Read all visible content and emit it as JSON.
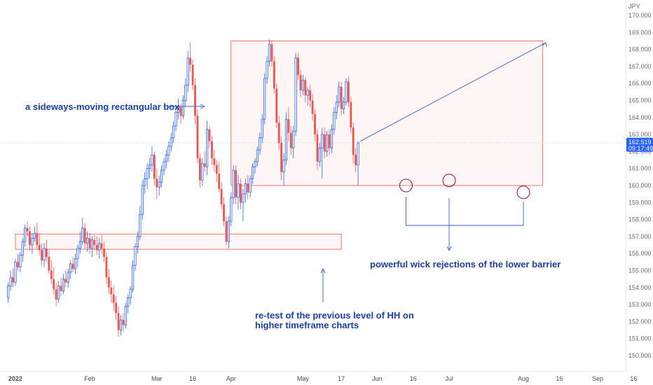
{
  "chart_data": {
    "type": "candlestick",
    "currency": "JPY",
    "y_ticks": [
      "170.000",
      "169.000",
      "168.000",
      "167.000",
      "166.000",
      "165.000",
      "164.000",
      "163.000",
      "162.000",
      "161.000",
      "160.000",
      "159.000",
      "158.000",
      "157.000",
      "156.000",
      "155.000",
      "154.000",
      "153.000",
      "152.000",
      "151.000",
      "150.000"
    ],
    "ylim": [
      149.5,
      170.5
    ],
    "x_ticks": [
      {
        "label": "2022",
        "day": 0
      },
      {
        "label": "Feb",
        "day": 31
      },
      {
        "label": "Mar",
        "day": 59
      },
      {
        "label": "16",
        "day": 74
      },
      {
        "label": "Apr",
        "day": 90
      },
      {
        "label": "May",
        "day": 120
      },
      {
        "label": "17",
        "day": 136
      },
      {
        "label": "Jun",
        "day": 151
      },
      {
        "label": "16",
        "day": 166
      },
      {
        "label": "Jul",
        "day": 181
      },
      {
        "label": "Aug",
        "day": 212
      },
      {
        "label": "16",
        "day": 227
      },
      {
        "label": "Sep",
        "day": 243
      },
      {
        "label": "16",
        "day": 258
      }
    ],
    "xlim": [
      -3,
      262
    ],
    "current_price": "162.519",
    "countdown": "09:17:49",
    "up_color": "#2962ff",
    "down_color": "#ef5350",
    "zones": [
      {
        "name": "range-box",
        "day_start": 90,
        "day_end": 220,
        "price_low": 160.0,
        "price_high": 168.5
      },
      {
        "name": "previous-hh-zone",
        "day_start": 0,
        "day_end": 136,
        "price_low": 156.25,
        "price_high": 157.15
      }
    ],
    "annotations": {
      "box_label": "a sideways-moving rectangular box",
      "retest_line1": "re-test of the previous level of HH on",
      "retest_line2": "higher timeframe charts",
      "rejection_label": "powerful wick rejections of the lower barrier"
    },
    "candles": [
      {
        "day": -3,
        "o": 153.4,
        "h": 154.3,
        "l": 153.1,
        "c": 154.1
      },
      {
        "day": -2,
        "o": 154.1,
        "h": 155.0,
        "l": 153.8,
        "c": 154.6
      },
      {
        "day": -1,
        "o": 154.6,
        "h": 155.1,
        "l": 154.0,
        "c": 154.3
      },
      {
        "day": 0,
        "o": 154.3,
        "h": 155.7,
        "l": 154.1,
        "c": 155.5
      },
      {
        "day": 1,
        "o": 155.5,
        "h": 156.0,
        "l": 155.0,
        "c": 155.2
      },
      {
        "day": 2,
        "o": 155.2,
        "h": 156.1,
        "l": 154.9,
        "c": 155.9
      },
      {
        "day": 3,
        "o": 155.9,
        "h": 156.9,
        "l": 155.5,
        "c": 156.7
      },
      {
        "day": 4,
        "o": 156.7,
        "h": 157.7,
        "l": 156.4,
        "c": 157.5
      },
      {
        "day": 5,
        "o": 157.5,
        "h": 157.9,
        "l": 157.0,
        "c": 157.3
      },
      {
        "day": 6,
        "o": 157.3,
        "h": 157.6,
        "l": 156.2,
        "c": 156.5
      },
      {
        "day": 7,
        "o": 156.5,
        "h": 157.2,
        "l": 156.0,
        "c": 156.9
      },
      {
        "day": 8,
        "o": 156.9,
        "h": 157.6,
        "l": 156.7,
        "c": 157.2
      },
      {
        "day": 9,
        "o": 157.2,
        "h": 157.8,
        "l": 156.3,
        "c": 156.5
      },
      {
        "day": 10,
        "o": 156.5,
        "h": 157.2,
        "l": 155.9,
        "c": 156.2
      },
      {
        "day": 11,
        "o": 156.2,
        "h": 156.6,
        "l": 155.3,
        "c": 155.6
      },
      {
        "day": 12,
        "o": 155.6,
        "h": 156.6,
        "l": 155.2,
        "c": 156.3
      },
      {
        "day": 13,
        "o": 156.3,
        "h": 156.8,
        "l": 155.5,
        "c": 155.8
      },
      {
        "day": 14,
        "o": 155.8,
        "h": 156.2,
        "l": 154.8,
        "c": 155.0
      },
      {
        "day": 15,
        "o": 155.0,
        "h": 155.6,
        "l": 154.2,
        "c": 154.5
      },
      {
        "day": 16,
        "o": 154.5,
        "h": 155.2,
        "l": 153.6,
        "c": 153.9
      },
      {
        "day": 17,
        "o": 153.9,
        "h": 154.3,
        "l": 152.9,
        "c": 153.3
      },
      {
        "day": 18,
        "o": 153.3,
        "h": 154.4,
        "l": 153.1,
        "c": 154.1
      },
      {
        "day": 19,
        "o": 154.1,
        "h": 154.6,
        "l": 153.5,
        "c": 153.8
      },
      {
        "day": 20,
        "o": 153.8,
        "h": 154.8,
        "l": 153.6,
        "c": 154.5
      },
      {
        "day": 21,
        "o": 154.5,
        "h": 155.0,
        "l": 154.0,
        "c": 154.3
      },
      {
        "day": 22,
        "o": 154.3,
        "h": 155.1,
        "l": 154.0,
        "c": 154.9
      },
      {
        "day": 23,
        "o": 154.9,
        "h": 155.6,
        "l": 154.5,
        "c": 155.4
      },
      {
        "day": 24,
        "o": 155.4,
        "h": 155.8,
        "l": 154.9,
        "c": 155.1
      },
      {
        "day": 25,
        "o": 155.1,
        "h": 156.0,
        "l": 154.8,
        "c": 155.7
      },
      {
        "day": 26,
        "o": 155.7,
        "h": 156.5,
        "l": 155.2,
        "c": 156.3
      },
      {
        "day": 27,
        "o": 156.3,
        "h": 157.3,
        "l": 156.0,
        "c": 156.7
      },
      {
        "day": 28,
        "o": 156.7,
        "h": 158.1,
        "l": 156.5,
        "c": 157.5
      },
      {
        "day": 29,
        "o": 157.5,
        "h": 157.8,
        "l": 156.3,
        "c": 156.6
      },
      {
        "day": 30,
        "o": 156.6,
        "h": 157.3,
        "l": 156.1,
        "c": 156.9
      },
      {
        "day": 31,
        "o": 156.9,
        "h": 157.2,
        "l": 156.0,
        "c": 156.3
      },
      {
        "day": 32,
        "o": 156.3,
        "h": 157.0,
        "l": 155.8,
        "c": 156.8
      },
      {
        "day": 33,
        "o": 156.8,
        "h": 157.1,
        "l": 156.2,
        "c": 156.5
      },
      {
        "day": 34,
        "o": 156.5,
        "h": 157.0,
        "l": 155.9,
        "c": 156.2
      },
      {
        "day": 35,
        "o": 156.2,
        "h": 156.9,
        "l": 155.7,
        "c": 156.6
      },
      {
        "day": 36,
        "o": 156.6,
        "h": 157.1,
        "l": 156.0,
        "c": 156.3
      },
      {
        "day": 37,
        "o": 156.3,
        "h": 156.7,
        "l": 155.5,
        "c": 155.8
      },
      {
        "day": 38,
        "o": 155.8,
        "h": 156.1,
        "l": 154.2,
        "c": 154.6
      },
      {
        "day": 39,
        "o": 154.6,
        "h": 155.1,
        "l": 153.6,
        "c": 154.0
      },
      {
        "day": 40,
        "o": 154.0,
        "h": 154.4,
        "l": 153.1,
        "c": 153.6
      },
      {
        "day": 41,
        "o": 153.6,
        "h": 154.1,
        "l": 152.6,
        "c": 153.1
      },
      {
        "day": 42,
        "o": 153.1,
        "h": 153.5,
        "l": 152.1,
        "c": 152.5
      },
      {
        "day": 43,
        "o": 152.5,
        "h": 152.9,
        "l": 151.1,
        "c": 151.5
      },
      {
        "day": 44,
        "o": 151.5,
        "h": 152.4,
        "l": 151.2,
        "c": 152.1
      },
      {
        "day": 45,
        "o": 152.1,
        "h": 152.5,
        "l": 151.4,
        "c": 151.8
      },
      {
        "day": 46,
        "o": 151.8,
        "h": 153.1,
        "l": 151.6,
        "c": 152.9
      },
      {
        "day": 47,
        "o": 152.9,
        "h": 153.6,
        "l": 152.5,
        "c": 153.4
      },
      {
        "day": 48,
        "o": 153.4,
        "h": 154.1,
        "l": 153.0,
        "c": 153.9
      },
      {
        "day": 49,
        "o": 153.9,
        "h": 155.6,
        "l": 153.7,
        "c": 155.3
      },
      {
        "day": 50,
        "o": 155.3,
        "h": 156.6,
        "l": 155.0,
        "c": 156.4
      },
      {
        "day": 51,
        "o": 156.4,
        "h": 157.3,
        "l": 156.0,
        "c": 157.0
      },
      {
        "day": 52,
        "o": 157.0,
        "h": 158.8,
        "l": 156.8,
        "c": 158.3
      },
      {
        "day": 53,
        "o": 158.3,
        "h": 160.3,
        "l": 158.0,
        "c": 160.0
      },
      {
        "day": 54,
        "o": 160.0,
        "h": 160.8,
        "l": 159.5,
        "c": 160.4
      },
      {
        "day": 55,
        "o": 160.4,
        "h": 161.3,
        "l": 159.8,
        "c": 161.0
      },
      {
        "day": 56,
        "o": 161.0,
        "h": 161.6,
        "l": 160.4,
        "c": 161.2
      },
      {
        "day": 57,
        "o": 161.2,
        "h": 162.3,
        "l": 160.8,
        "c": 161.8
      },
      {
        "day": 58,
        "o": 161.8,
        "h": 162.0,
        "l": 160.0,
        "c": 160.4
      },
      {
        "day": 59,
        "o": 160.4,
        "h": 161.0,
        "l": 159.2,
        "c": 159.9
      },
      {
        "day": 60,
        "o": 159.9,
        "h": 160.6,
        "l": 159.4,
        "c": 160.2
      },
      {
        "day": 61,
        "o": 160.2,
        "h": 161.2,
        "l": 159.9,
        "c": 160.9
      },
      {
        "day": 62,
        "o": 160.9,
        "h": 161.6,
        "l": 160.6,
        "c": 161.4
      },
      {
        "day": 63,
        "o": 161.4,
        "h": 162.1,
        "l": 161.0,
        "c": 161.8
      },
      {
        "day": 64,
        "o": 161.8,
        "h": 162.6,
        "l": 161.4,
        "c": 162.3
      },
      {
        "day": 65,
        "o": 162.3,
        "h": 163.1,
        "l": 162.0,
        "c": 162.8
      },
      {
        "day": 66,
        "o": 162.8,
        "h": 163.8,
        "l": 162.5,
        "c": 163.5
      },
      {
        "day": 67,
        "o": 163.5,
        "h": 164.6,
        "l": 163.2,
        "c": 164.3
      },
      {
        "day": 68,
        "o": 164.3,
        "h": 165.1,
        "l": 163.9,
        "c": 164.6
      },
      {
        "day": 69,
        "o": 164.6,
        "h": 164.8,
        "l": 163.6,
        "c": 164.1
      },
      {
        "day": 70,
        "o": 164.1,
        "h": 165.3,
        "l": 163.9,
        "c": 165.0
      },
      {
        "day": 71,
        "o": 165.0,
        "h": 166.3,
        "l": 164.6,
        "c": 165.9
      },
      {
        "day": 72,
        "o": 165.9,
        "h": 167.9,
        "l": 165.5,
        "c": 167.5
      },
      {
        "day": 73,
        "o": 167.5,
        "h": 168.4,
        "l": 166.7,
        "c": 167.1
      },
      {
        "day": 74,
        "o": 167.1,
        "h": 167.4,
        "l": 165.6,
        "c": 165.9
      },
      {
        "day": 75,
        "o": 165.9,
        "h": 166.3,
        "l": 163.6,
        "c": 164.1
      },
      {
        "day": 76,
        "o": 164.1,
        "h": 164.5,
        "l": 161.3,
        "c": 161.6
      },
      {
        "day": 77,
        "o": 161.6,
        "h": 161.9,
        "l": 159.9,
        "c": 160.3
      },
      {
        "day": 78,
        "o": 160.3,
        "h": 161.6,
        "l": 160.0,
        "c": 161.3
      },
      {
        "day": 79,
        "o": 161.3,
        "h": 162.0,
        "l": 160.8,
        "c": 161.1
      },
      {
        "day": 80,
        "o": 161.1,
        "h": 163.8,
        "l": 160.6,
        "c": 163.3
      },
      {
        "day": 81,
        "o": 163.3,
        "h": 163.5,
        "l": 162.2,
        "c": 162.6
      },
      {
        "day": 82,
        "o": 162.6,
        "h": 162.9,
        "l": 161.2,
        "c": 161.6
      },
      {
        "day": 83,
        "o": 161.6,
        "h": 162.1,
        "l": 160.8,
        "c": 161.2
      },
      {
        "day": 84,
        "o": 161.2,
        "h": 161.5,
        "l": 160.2,
        "c": 160.7
      },
      {
        "day": 85,
        "o": 160.7,
        "h": 161.4,
        "l": 159.6,
        "c": 159.8
      },
      {
        "day": 86,
        "o": 159.8,
        "h": 160.2,
        "l": 158.6,
        "c": 158.9
      },
      {
        "day": 87,
        "o": 158.9,
        "h": 159.3,
        "l": 157.6,
        "c": 157.9
      },
      {
        "day": 88,
        "o": 157.9,
        "h": 158.2,
        "l": 156.5,
        "c": 156.7
      },
      {
        "day": 89,
        "o": 156.7,
        "h": 158.2,
        "l": 156.3,
        "c": 157.9
      },
      {
        "day": 90,
        "o": 157.9,
        "h": 159.6,
        "l": 157.6,
        "c": 159.3
      },
      {
        "day": 91,
        "o": 159.3,
        "h": 161.2,
        "l": 158.9,
        "c": 160.9
      },
      {
        "day": 92,
        "o": 160.9,
        "h": 161.2,
        "l": 158.9,
        "c": 159.3
      },
      {
        "day": 93,
        "o": 159.3,
        "h": 160.6,
        "l": 158.6,
        "c": 160.1
      },
      {
        "day": 94,
        "o": 160.1,
        "h": 160.4,
        "l": 158.6,
        "c": 159.0
      },
      {
        "day": 95,
        "o": 159.0,
        "h": 159.8,
        "l": 157.9,
        "c": 159.5
      },
      {
        "day": 96,
        "o": 159.5,
        "h": 160.4,
        "l": 159.0,
        "c": 160.1
      },
      {
        "day": 97,
        "o": 160.1,
        "h": 160.6,
        "l": 159.2,
        "c": 159.6
      },
      {
        "day": 98,
        "o": 159.6,
        "h": 160.6,
        "l": 159.3,
        "c": 160.4
      },
      {
        "day": 99,
        "o": 160.4,
        "h": 161.3,
        "l": 160.1,
        "c": 161.1
      },
      {
        "day": 100,
        "o": 161.1,
        "h": 161.6,
        "l": 160.7,
        "c": 161.4
      },
      {
        "day": 101,
        "o": 161.4,
        "h": 162.3,
        "l": 161.1,
        "c": 162.1
      },
      {
        "day": 102,
        "o": 162.1,
        "h": 163.1,
        "l": 161.8,
        "c": 162.8
      },
      {
        "day": 103,
        "o": 162.8,
        "h": 164.2,
        "l": 162.5,
        "c": 163.9
      },
      {
        "day": 104,
        "o": 163.9,
        "h": 166.6,
        "l": 163.6,
        "c": 166.3
      },
      {
        "day": 105,
        "o": 166.3,
        "h": 167.6,
        "l": 166.0,
        "c": 167.3
      },
      {
        "day": 106,
        "o": 167.3,
        "h": 168.6,
        "l": 167.0,
        "c": 168.3
      },
      {
        "day": 107,
        "o": 168.3,
        "h": 168.5,
        "l": 167.0,
        "c": 167.3
      },
      {
        "day": 108,
        "o": 167.3,
        "h": 167.6,
        "l": 165.4,
        "c": 165.7
      },
      {
        "day": 109,
        "o": 165.7,
        "h": 166.0,
        "l": 163.4,
        "c": 163.7
      },
      {
        "day": 110,
        "o": 163.7,
        "h": 164.1,
        "l": 162.1,
        "c": 162.5
      },
      {
        "day": 111,
        "o": 162.5,
        "h": 162.9,
        "l": 160.3,
        "c": 160.8
      },
      {
        "day": 112,
        "o": 160.8,
        "h": 161.9,
        "l": 160.0,
        "c": 161.5
      },
      {
        "day": 113,
        "o": 161.5,
        "h": 164.3,
        "l": 161.2,
        "c": 163.9
      },
      {
        "day": 114,
        "o": 163.9,
        "h": 164.6,
        "l": 162.6,
        "c": 163.1
      },
      {
        "day": 115,
        "o": 163.1,
        "h": 163.5,
        "l": 161.8,
        "c": 162.2
      },
      {
        "day": 116,
        "o": 162.2,
        "h": 163.5,
        "l": 161.6,
        "c": 163.2
      },
      {
        "day": 117,
        "o": 163.2,
        "h": 167.8,
        "l": 162.9,
        "c": 167.5
      },
      {
        "day": 118,
        "o": 167.5,
        "h": 167.8,
        "l": 166.2,
        "c": 166.5
      },
      {
        "day": 119,
        "o": 166.5,
        "h": 166.8,
        "l": 165.2,
        "c": 165.6
      },
      {
        "day": 120,
        "o": 165.6,
        "h": 166.5,
        "l": 165.3,
        "c": 166.2
      },
      {
        "day": 121,
        "o": 166.2,
        "h": 166.4,
        "l": 164.9,
        "c": 165.3
      },
      {
        "day": 122,
        "o": 165.3,
        "h": 165.8,
        "l": 164.7,
        "c": 165.6
      },
      {
        "day": 123,
        "o": 165.6,
        "h": 165.9,
        "l": 164.6,
        "c": 165.0
      },
      {
        "day": 124,
        "o": 165.0,
        "h": 165.4,
        "l": 163.8,
        "c": 164.2
      },
      {
        "day": 125,
        "o": 164.2,
        "h": 164.5,
        "l": 162.6,
        "c": 163.0
      },
      {
        "day": 126,
        "o": 163.0,
        "h": 163.3,
        "l": 160.9,
        "c": 161.4
      },
      {
        "day": 127,
        "o": 161.4,
        "h": 162.5,
        "l": 161.1,
        "c": 162.2
      },
      {
        "day": 128,
        "o": 162.2,
        "h": 163.4,
        "l": 160.4,
        "c": 163.0
      },
      {
        "day": 129,
        "o": 163.0,
        "h": 163.4,
        "l": 161.6,
        "c": 162.0
      },
      {
        "day": 130,
        "o": 162.0,
        "h": 163.2,
        "l": 161.7,
        "c": 163.0
      },
      {
        "day": 131,
        "o": 163.0,
        "h": 163.3,
        "l": 161.8,
        "c": 162.2
      },
      {
        "day": 132,
        "o": 162.2,
        "h": 163.6,
        "l": 161.9,
        "c": 163.3
      },
      {
        "day": 133,
        "o": 163.3,
        "h": 164.6,
        "l": 163.0,
        "c": 164.3
      },
      {
        "day": 134,
        "o": 164.3,
        "h": 165.3,
        "l": 163.9,
        "c": 164.9
      },
      {
        "day": 135,
        "o": 164.9,
        "h": 166.1,
        "l": 164.6,
        "c": 165.8
      },
      {
        "day": 136,
        "o": 165.8,
        "h": 166.1,
        "l": 164.1,
        "c": 164.5
      },
      {
        "day": 137,
        "o": 164.5,
        "h": 165.2,
        "l": 164.2,
        "c": 164.9
      },
      {
        "day": 138,
        "o": 164.9,
        "h": 166.3,
        "l": 164.7,
        "c": 166.1
      },
      {
        "day": 139,
        "o": 166.1,
        "h": 166.4,
        "l": 164.6,
        "c": 164.9
      },
      {
        "day": 140,
        "o": 164.9,
        "h": 165.2,
        "l": 163.1,
        "c": 163.4
      },
      {
        "day": 141,
        "o": 163.4,
        "h": 163.7,
        "l": 161.3,
        "c": 161.8
      },
      {
        "day": 142,
        "o": 161.8,
        "h": 162.2,
        "l": 160.8,
        "c": 161.2
      },
      {
        "day": 143,
        "o": 161.2,
        "h": 162.6,
        "l": 160.0,
        "c": 162.5
      }
    ]
  }
}
